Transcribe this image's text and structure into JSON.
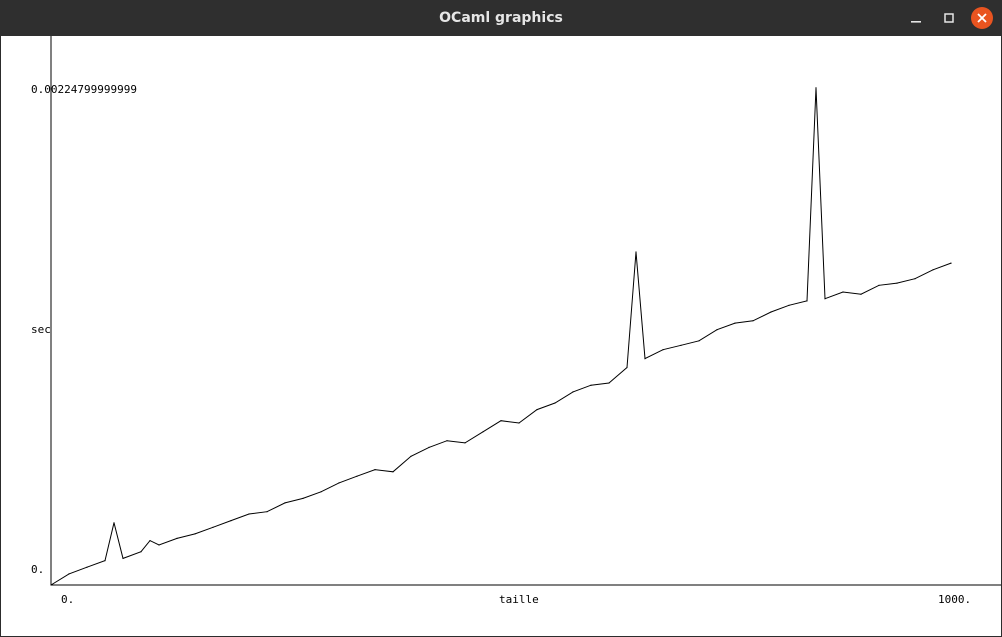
{
  "window": {
    "title": "OCaml graphics",
    "controls": {
      "minimize_icon": "minimize-icon",
      "maximize_icon": "maximize-icon",
      "close_icon": "close-icon"
    },
    "close_color": "#e95420"
  },
  "chart_data": {
    "type": "line",
    "xlabel": "taille",
    "ylabel": "sec",
    "x_tick_labels": [
      "0.",
      "1000."
    ],
    "y_tick_labels": [
      "0.",
      "0.00224799999999"
    ],
    "xlim": [
      0,
      1000
    ],
    "ylim": [
      0,
      0.002248
    ],
    "line_color": "#000000",
    "grid": false,
    "series": [
      {
        "x": [
          0,
          20,
          40,
          60,
          70,
          80,
          100,
          110,
          120,
          140,
          160,
          180,
          200,
          220,
          240,
          260,
          280,
          300,
          320,
          340,
          360,
          380,
          400,
          420,
          440,
          460,
          480,
          500,
          520,
          540,
          560,
          580,
          600,
          620,
          640,
          650,
          660,
          680,
          700,
          720,
          740,
          760,
          780,
          800,
          820,
          840,
          850,
          860,
          880,
          900,
          920,
          940,
          960,
          980,
          1000
        ],
        "y": [
          0.0,
          5e-05,
          8e-05,
          0.00011,
          0.00028,
          0.00012,
          0.00015,
          0.0002,
          0.00018,
          0.00021,
          0.00023,
          0.00026,
          0.00029,
          0.00032,
          0.00033,
          0.00037,
          0.00039,
          0.00042,
          0.00046,
          0.00049,
          0.00052,
          0.00051,
          0.00058,
          0.00062,
          0.00065,
          0.00064,
          0.00069,
          0.00074,
          0.00073,
          0.00079,
          0.00082,
          0.00087,
          0.0009,
          0.00091,
          0.00098,
          0.0015,
          0.00102,
          0.00106,
          0.00108,
          0.0011,
          0.00115,
          0.00118,
          0.00119,
          0.00123,
          0.00126,
          0.00128,
          0.00224,
          0.00129,
          0.00132,
          0.00131,
          0.00135,
          0.00136,
          0.00138,
          0.00142,
          0.00145
        ]
      }
    ]
  }
}
